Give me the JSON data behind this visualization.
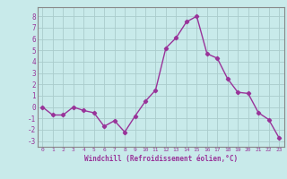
{
  "x": [
    0,
    1,
    2,
    3,
    4,
    5,
    6,
    7,
    8,
    9,
    10,
    11,
    12,
    13,
    14,
    15,
    16,
    17,
    18,
    19,
    20,
    21,
    22,
    23
  ],
  "y": [
    0,
    -0.7,
    -0.7,
    0,
    -0.3,
    -0.5,
    -1.7,
    -1.2,
    -2.2,
    -0.8,
    0.5,
    1.5,
    5.2,
    6.1,
    7.5,
    8.0,
    4.7,
    4.3,
    2.5,
    1.3,
    1.2,
    -0.5,
    -1.1,
    -2.7
  ],
  "color": "#993399",
  "bg_color": "#c8eaea",
  "grid_color": "#aacccc",
  "xlabel": "Windchill (Refroidissement éolien,°C)",
  "xlabel_color": "#993399",
  "ytick_labels": [
    "8",
    "7",
    "6",
    "5",
    "4",
    "3",
    "2",
    "1",
    "0",
    "-1",
    "-2",
    "-3"
  ],
  "yticks": [
    8,
    7,
    6,
    5,
    4,
    3,
    2,
    1,
    0,
    -1,
    -2,
    -3
  ],
  "xtick_labels": [
    "0",
    "1",
    "2",
    "3",
    "4",
    "5",
    "6",
    "7",
    "8",
    "9",
    "10",
    "11",
    "12",
    "13",
    "14",
    "15",
    "16",
    "17",
    "18",
    "19",
    "20",
    "21",
    "22",
    "23"
  ],
  "xticks": [
    0,
    1,
    2,
    3,
    4,
    5,
    6,
    7,
    8,
    9,
    10,
    11,
    12,
    13,
    14,
    15,
    16,
    17,
    18,
    19,
    20,
    21,
    22,
    23
  ],
  "ylim": [
    -3.5,
    8.8
  ],
  "xlim": [
    -0.5,
    23.5
  ],
  "tick_color": "#993399",
  "spine_color": "#888888",
  "marker": "D",
  "markersize": 2.2,
  "linewidth": 1.0
}
